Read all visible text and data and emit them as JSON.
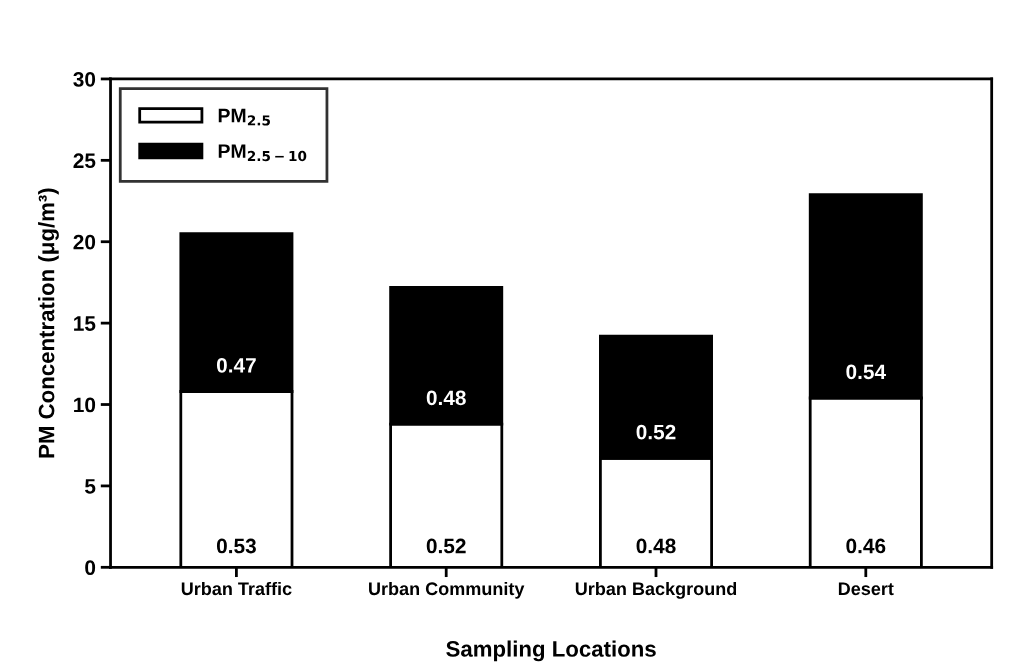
{
  "chart_data": {
    "type": "bar",
    "stacked": true,
    "xlabel": "Sampling Locations",
    "ylabel": "PM Concentration (μg/m³)",
    "categories": [
      "Urban Traffic",
      "Urban Community",
      "Urban Background",
      "Desert"
    ],
    "series": [
      {
        "name": "PM$_{2.5}$",
        "color": "#ffffff",
        "values": [
          10.8,
          8.8,
          6.7,
          10.4
        ]
      },
      {
        "name": "PM$_{2.5−10}$",
        "color": "#000000",
        "values": [
          9.7,
          8.4,
          7.5,
          12.5
        ]
      }
    ],
    "ylim": [
      0,
      30
    ],
    "yticks": [
      0,
      5,
      10,
      15,
      20,
      25,
      30
    ],
    "grid": false,
    "legend": "top left",
    "annotations": [
      "0.53",
      "0.52",
      "0.48",
      "0.46",
      "0.47",
      "0.48",
      "0.52",
      "0.54"
    ]
  }
}
